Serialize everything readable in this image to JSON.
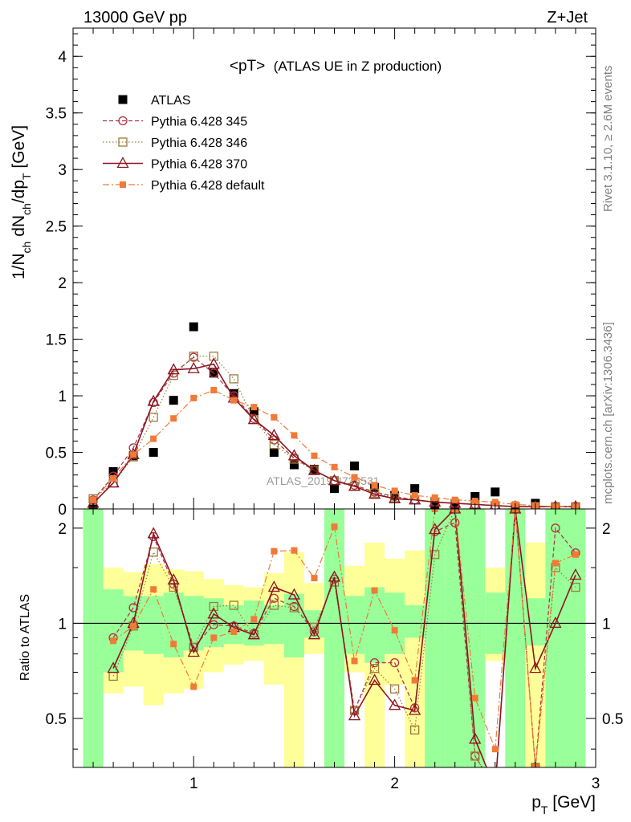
{
  "header": {
    "left": "13000 GeV pp",
    "right": "Z+Jet"
  },
  "side_labels": {
    "rivet": "Rivet 3.1.10, ≥ 2.6M events",
    "mcplots": "mcplots.cern.ch [arXiv:1306.3436]"
  },
  "watermark": "ATLAS_2019_I736531",
  "chart_data": [
    {
      "type": "scatter",
      "panel": "main",
      "title": "<pT>",
      "subtitle": "(ATLAS UE in Z production)",
      "ylabel": "1/N_ch dN_ch/dp_T [GeV]",
      "ylabel_parts": {
        "a": "1/N",
        "a_sub": "ch",
        "b": " dN",
        "b_sub": "ch",
        "c": "/dp",
        "c_sub": "T",
        "d": " [GeV]"
      },
      "xlim": [
        0.4,
        3.0
      ],
      "ylim": [
        0,
        4.25
      ],
      "yticks": [
        "0",
        "0.5",
        "1",
        "1.5",
        "2",
        "2.5",
        "3",
        "3.5",
        "4"
      ],
      "ytick_values": [
        0,
        0.5,
        1,
        1.5,
        2,
        2.5,
        3,
        3.5,
        4
      ],
      "legend_position": "top-left",
      "x": [
        0.5,
        0.6,
        0.7,
        0.8,
        0.9,
        1.0,
        1.1,
        1.2,
        1.3,
        1.4,
        1.5,
        1.6,
        1.7,
        1.8,
        1.9,
        2.0,
        2.1,
        2.2,
        2.3,
        2.4,
        2.5,
        2.6,
        2.7,
        2.8,
        2.9
      ],
      "series": [
        {
          "name": "ATLAS",
          "color": "#000000",
          "marker": "square-filled",
          "values": [
            0.0,
            0.33,
            0.47,
            0.5,
            0.96,
            1.61,
            1.2,
            1.02,
            0.86,
            0.5,
            0.39,
            0.35,
            0.18,
            0.38,
            0.19,
            0.12,
            0.18,
            0.03,
            0.03,
            0.11,
            0.15,
            0.0,
            0.05,
            0.01,
            0.01
          ]
        },
        {
          "name": "Pythia 6.428 345",
          "color": "#b03040",
          "marker": "circle-open",
          "dash": "5,3",
          "values": [
            0.08,
            0.29,
            0.54,
            0.94,
            1.2,
            1.34,
            1.2,
            1.0,
            0.8,
            0.61,
            0.45,
            0.34,
            0.25,
            0.21,
            0.15,
            0.11,
            0.08,
            0.06,
            0.05,
            0.04,
            0.03,
            0.02,
            0.02,
            0.02,
            0.02
          ]
        },
        {
          "name": "Pythia 6.428 346",
          "color": "#9c7c3a",
          "marker": "square-open",
          "dash": "1.5,2.5",
          "values": [
            0.09,
            0.23,
            0.46,
            0.81,
            1.18,
            1.35,
            1.35,
            1.15,
            0.79,
            0.57,
            0.44,
            0.34,
            0.25,
            0.2,
            0.14,
            0.1,
            0.08,
            0.06,
            0.05,
            0.04,
            0.03,
            0.02,
            0.02,
            0.02,
            0.02
          ]
        },
        {
          "name": "Pythia 6.428 370",
          "color": "#8b1520",
          "marker": "triangle-open",
          "dash": "",
          "values": [
            0.05,
            0.23,
            0.48,
            0.95,
            1.23,
            1.24,
            1.28,
            0.98,
            0.79,
            0.65,
            0.47,
            0.34,
            0.25,
            0.2,
            0.13,
            0.09,
            0.08,
            0.06,
            0.05,
            0.04,
            0.03,
            0.02,
            0.02,
            0.02,
            0.02
          ]
        },
        {
          "name": "Pythia 6.428 default",
          "color": "#f07a38",
          "marker": "square-filled-small",
          "dash": "8,3,2,3",
          "values": [
            0.08,
            0.27,
            0.48,
            0.62,
            0.8,
            0.98,
            1.05,
            0.96,
            0.9,
            0.81,
            0.65,
            0.47,
            0.37,
            0.28,
            0.21,
            0.16,
            0.12,
            0.1,
            0.08,
            0.07,
            0.06,
            0.04,
            0.03,
            0.02,
            0.02
          ]
        }
      ]
    },
    {
      "type": "scatter",
      "panel": "ratio",
      "ylabel": "Ratio to ATLAS",
      "xlabel": "p_T [GeV]",
      "xlabel_parts": {
        "a": "p",
        "a_sub": "T",
        "b": " [GeV]"
      },
      "xlim": [
        0.4,
        3.0
      ],
      "ylim": [
        0.35,
        2.3
      ],
      "xticks": [
        "1",
        "2",
        "3"
      ],
      "xtick_values": [
        1,
        2,
        3
      ],
      "yticks": [
        "0.5",
        "1",
        "2"
      ],
      "ytick_values": [
        0.5,
        1,
        2
      ],
      "reference_line": 1,
      "uncertainty_bands": {
        "x_edges": [
          0.45,
          0.55,
          0.65,
          0.75,
          0.85,
          0.95,
          1.05,
          1.15,
          1.25,
          1.35,
          1.45,
          1.55,
          1.65,
          1.75,
          1.85,
          1.95,
          2.05,
          2.15,
          2.25,
          2.35,
          2.45,
          2.55,
          2.65,
          2.75,
          2.85,
          2.95
        ],
        "inner_color": "#99ff99",
        "outer_color": "#ffff99",
        "inner_low": [
          0.35,
          0.7,
          0.82,
          0.8,
          0.78,
          0.82,
          0.84,
          0.86,
          0.85,
          0.86,
          0.78,
          0.9,
          0.35,
          0.8,
          0.75,
          0.8,
          0.9,
          0.35,
          0.35,
          0.35,
          0.8,
          0.35,
          0.85,
          0.35,
          0.35
        ],
        "inner_high": [
          2.3,
          1.28,
          1.22,
          1.22,
          1.25,
          1.22,
          1.2,
          1.14,
          1.18,
          1.14,
          1.24,
          1.1,
          2.3,
          1.22,
          1.3,
          1.25,
          1.14,
          2.3,
          2.3,
          2.3,
          1.25,
          2.3,
          1.2,
          2.3,
          2.3
        ],
        "outer_low": [
          0.35,
          0.6,
          0.63,
          0.55,
          0.6,
          0.62,
          0.7,
          0.74,
          0.76,
          0.64,
          0.35,
          0.8,
          0.35,
          0.7,
          0.35,
          0.64,
          0.35,
          0.35,
          0.35,
          0.35,
          0.76,
          0.35,
          0.35,
          0.35,
          0.35
        ],
        "outer_high": [
          2.3,
          1.5,
          1.45,
          1.54,
          1.48,
          1.46,
          1.38,
          1.32,
          1.3,
          1.44,
          1.68,
          1.34,
          2.3,
          1.52,
          1.8,
          1.6,
          1.7,
          2.3,
          2.3,
          2.3,
          1.5,
          2.3,
          1.8,
          2.3,
          2.3
        ]
      },
      "x": [
        0.6,
        0.7,
        0.8,
        0.9,
        1.0,
        1.1,
        1.2,
        1.3,
        1.4,
        1.5,
        1.6,
        1.7,
        1.8,
        1.9,
        2.0,
        2.1,
        2.2,
        2.3,
        2.4,
        2.5,
        2.6,
        2.7,
        2.8,
        2.9
      ],
      "series": [
        {
          "name": "Pythia 6.428 345",
          "color": "#b03040",
          "marker": "circle-open",
          "dash": "5,3",
          "values": [
            0.9,
            1.12,
            1.88,
            1.33,
            0.84,
            0.99,
            0.98,
            0.93,
            1.2,
            1.13,
            0.94,
            1.38,
            0.53,
            0.75,
            0.75,
            0.54,
            1.95,
            2.08,
            0.38,
            0.3,
            2.3,
            0.35,
            2.0,
            1.67
          ]
        },
        {
          "name": "Pythia 6.428 346",
          "color": "#9c7c3a",
          "marker": "square-open",
          "dash": "1.5,2.5",
          "values": [
            0.68,
            0.98,
            1.68,
            1.3,
            0.84,
            1.13,
            1.14,
            0.92,
            1.14,
            1.12,
            0.97,
            1.35,
            0.53,
            0.72,
            0.62,
            0.46,
            1.65,
            2.3,
            0.38,
            0.3,
            2.3,
            0.35,
            1.5,
            1.3
          ]
        },
        {
          "name": "Pythia 6.428 370",
          "color": "#8b1520",
          "marker": "triangle-open",
          "dash": "",
          "values": [
            0.72,
            1.0,
            1.92,
            1.37,
            0.81,
            1.07,
            0.97,
            0.92,
            1.3,
            1.23,
            0.92,
            1.4,
            0.51,
            0.66,
            0.55,
            0.53,
            1.98,
            2.3,
            0.43,
            0.3,
            2.3,
            0.72,
            1.0,
            1.42
          ]
        },
        {
          "name": "Pythia 6.428 default",
          "color": "#f07a38",
          "marker": "square-filled-small",
          "dash": "8,3,2,3",
          "values": [
            0.88,
            0.98,
            1.28,
            0.86,
            0.63,
            0.9,
            0.94,
            1.03,
            1.69,
            1.7,
            1.39,
            2.02,
            0.76,
            1.27,
            0.95,
            0.66,
            2.3,
            2.3,
            0.58,
            0.4,
            2.3,
            0.35,
            1.55,
            1.65
          ]
        }
      ]
    }
  ]
}
